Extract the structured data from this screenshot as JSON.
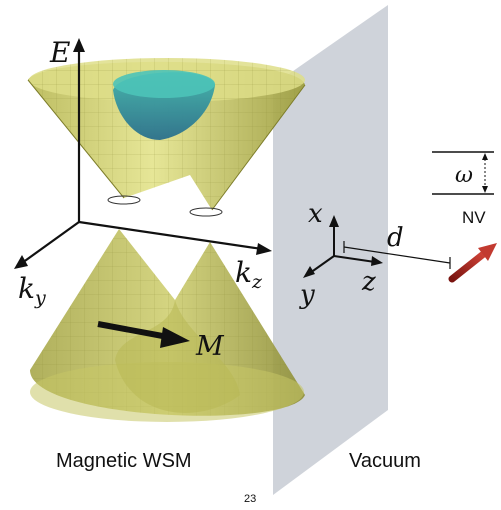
{
  "figure": {
    "labels": {
      "energy_axis": "E",
      "ky_axis_base": "k",
      "ky_axis_sub": "y",
      "kz_axis_base": "k",
      "kz_axis_sub": "z",
      "magnetization": "M",
      "x_axis": "x",
      "y_axis": "y",
      "z_axis": "z",
      "distance": "d",
      "frequency": "ω",
      "nv_center": "NV",
      "left_region": "Magnetic WSM",
      "right_region": "Vacuum",
      "page_number": "23"
    },
    "colors": {
      "cone_fill": "#c9c96a",
      "cone_stroke": "#7d7d2a",
      "pocket_fill": "#2c8f9a",
      "plane_fill": "#c9cdd6",
      "nv_arrow": "#b02a24"
    }
  }
}
